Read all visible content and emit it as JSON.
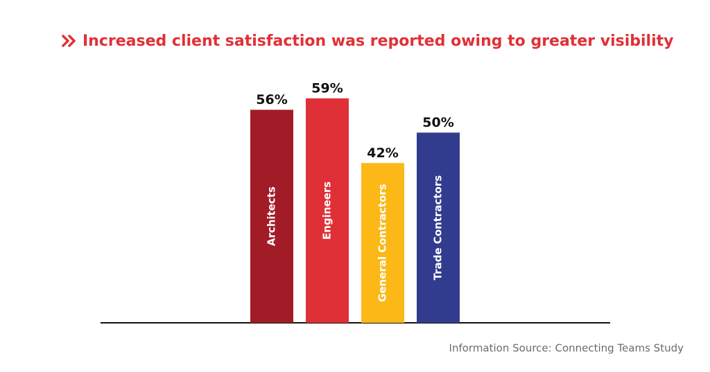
{
  "chart_data": {
    "type": "bar",
    "title": "Increased client satisfaction was reported owing to greater visibility",
    "categories": [
      "Architects",
      "Engineers",
      "General Contractors",
      "Trade Contractors"
    ],
    "values": [
      56,
      59,
      42,
      50
    ],
    "value_labels": [
      "56%",
      "59%",
      "42%",
      "50%"
    ],
    "colors": [
      "#a11c27",
      "#e03037",
      "#fbb817",
      "#323c8f"
    ],
    "source": "Information Source: Connecting Teams Study"
  }
}
